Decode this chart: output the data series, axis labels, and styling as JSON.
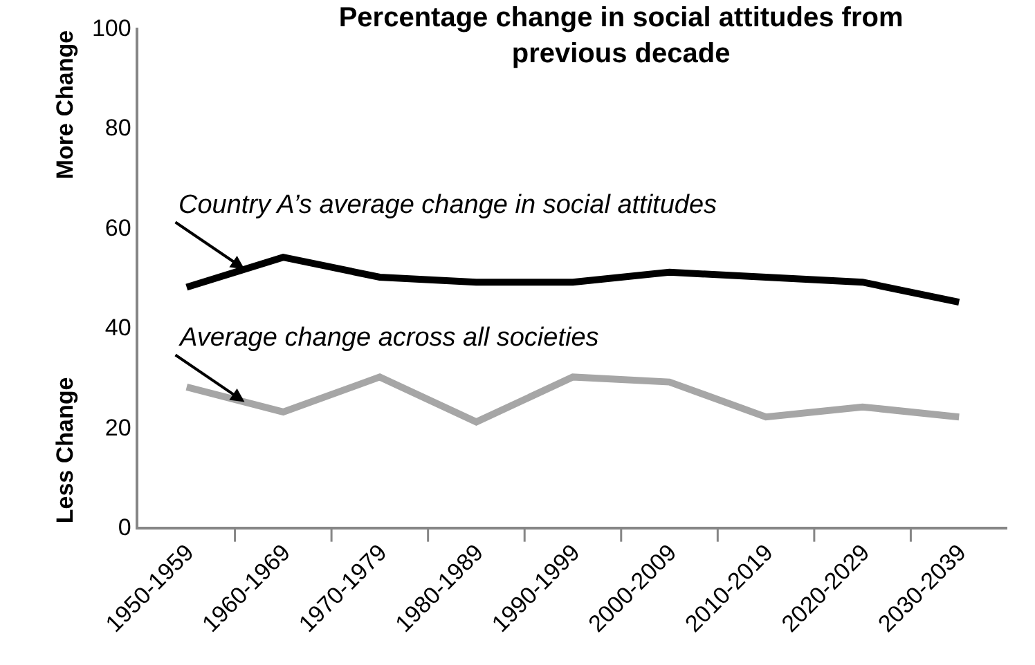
{
  "chart_data": {
    "type": "line",
    "title": "Percentage change in social attitudes from previous decade",
    "categories": [
      "1950-1959",
      "1960-1969",
      "1970-1979",
      "1980-1989",
      "1990-1999",
      "2000-2009",
      "2010-2019",
      "2020-2029",
      "2030-2039"
    ],
    "series": [
      {
        "name": "Country A’s average change in social attitudes",
        "color": "#000000",
        "values": [
          48,
          54,
          50,
          49,
          49,
          51,
          50,
          49,
          45
        ]
      },
      {
        "name": "Average change across all societies",
        "color": "#a6a6a6",
        "values": [
          28,
          23,
          30,
          21,
          30,
          29,
          22,
          24,
          22
        ]
      }
    ],
    "annotations": [
      "More Change",
      "Less Change"
    ],
    "ylim": [
      0,
      100
    ],
    "yticks": [
      0,
      20,
      40,
      60,
      80,
      100
    ],
    "legend": false,
    "marker": "none",
    "line_style": "solid"
  }
}
